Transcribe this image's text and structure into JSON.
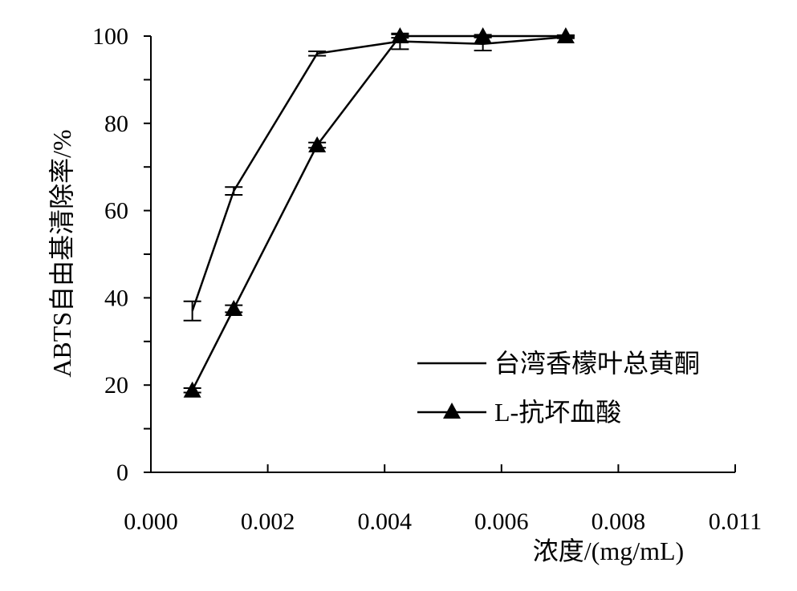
{
  "chart_data": {
    "type": "line",
    "xlabel": "浓度/(mg/mL)",
    "ylabel": "ABTS自由基清除率/%",
    "xlim": [
      0,
      0.011
    ],
    "ylim": [
      0,
      100
    ],
    "x_tick_labels": [
      "0.000",
      "0.002",
      "0.004",
      "0.006",
      "0.008",
      "0.011"
    ],
    "y_tick_labels": [
      "0",
      "20",
      "40",
      "60",
      "80",
      "100"
    ],
    "grid": false,
    "legend_position": "bottom-right",
    "series": [
      {
        "name": "台湾香檬叶总黄酮",
        "marker": "none",
        "color": "#000000",
        "x": [
          0.00078,
          0.00156,
          0.00313,
          0.00469,
          0.00625,
          0.00781
        ],
        "y": [
          37.0,
          64.5,
          96.0,
          98.8,
          98.2,
          99.8
        ],
        "error": [
          2.2,
          0.9,
          0.5,
          1.8,
          1.5,
          0.3
        ]
      },
      {
        "name": "L-抗坏血酸",
        "marker": "triangle",
        "color": "#000000",
        "x": [
          0.00078,
          0.00156,
          0.00313,
          0.00469,
          0.00625,
          0.00781
        ],
        "y": [
          18.8,
          37.5,
          75.0,
          100.0,
          100.0,
          100.0
        ],
        "error": [
          0.5,
          0.8,
          0.6,
          0.4,
          0.3,
          0.2
        ]
      }
    ]
  }
}
